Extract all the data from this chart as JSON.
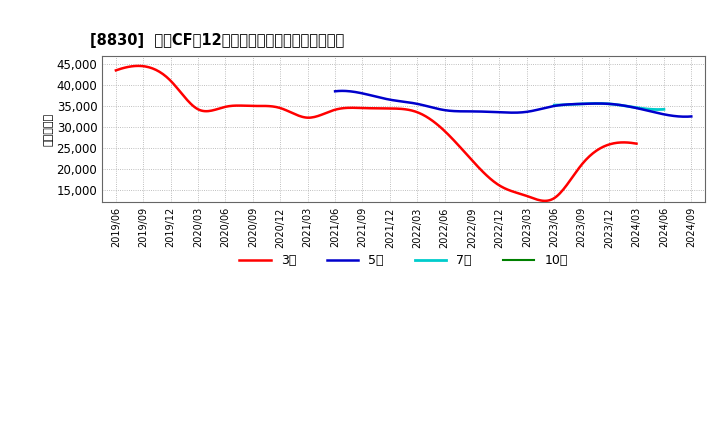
{
  "title": "[8830]  営業CFの12か月移動合計の標準偏差の推移",
  "ylabel": "（百万円）",
  "ylim": [
    12000,
    47000
  ],
  "yticks": [
    15000,
    20000,
    25000,
    30000,
    35000,
    40000,
    45000
  ],
  "background_color": "#ffffff",
  "plot_bg_color": "#ffffff",
  "grid_color": "#aaaaaa",
  "x_labels": [
    "2019/06",
    "2019/09",
    "2019/12",
    "2020/03",
    "2020/06",
    "2020/09",
    "2020/12",
    "2021/03",
    "2021/06",
    "2021/09",
    "2021/12",
    "2022/03",
    "2022/06",
    "2022/09",
    "2022/12",
    "2023/03",
    "2023/06",
    "2023/09",
    "2023/12",
    "2024/03",
    "2024/06",
    "2024/09"
  ],
  "series_3y": {
    "label": "3年",
    "color": "#ff0000",
    "x_indices": [
      0,
      1,
      2,
      3,
      4,
      5,
      6,
      7,
      8,
      9,
      10,
      11,
      12,
      13,
      14,
      15,
      16,
      17,
      18,
      19
    ],
    "values": [
      43500,
      44500,
      41000,
      34200,
      34800,
      35000,
      34500,
      32200,
      34100,
      34500,
      34400,
      33500,
      29000,
      22000,
      16000,
      13500,
      13000,
      21000,
      25800,
      26000
    ]
  },
  "series_5y": {
    "label": "5年",
    "color": "#0000cc",
    "x_indices": [
      8,
      9,
      10,
      11,
      12,
      13,
      14,
      15,
      16,
      17,
      18,
      19,
      20,
      21
    ],
    "values": [
      38500,
      38000,
      36500,
      35500,
      34000,
      33700,
      33500,
      33600,
      35000,
      35500,
      35500,
      34500,
      33000,
      32500
    ]
  },
  "series_7y": {
    "label": "7年",
    "color": "#00cccc",
    "x_indices": [
      16,
      17,
      18,
      19,
      20
    ],
    "values": [
      35200,
      35500,
      35500,
      34600,
      34200
    ]
  },
  "series_10y": {
    "label": "10年",
    "color": "#008000",
    "x_indices": [],
    "values": []
  },
  "legend_labels": [
    "3年",
    "5年",
    "7年",
    "10年"
  ],
  "legend_colors": [
    "#ff0000",
    "#0000cc",
    "#00cccc",
    "#008000"
  ]
}
